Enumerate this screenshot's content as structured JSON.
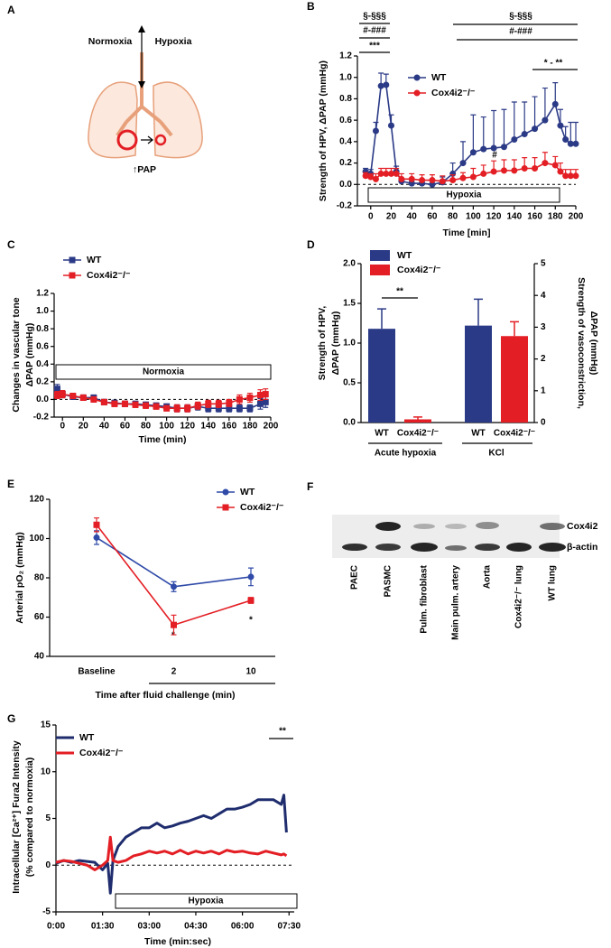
{
  "diagram": {
    "panel_label": "A",
    "labels": [
      "Normoxia",
      "Hypoxia",
      "↑PAP"
    ]
  },
  "blot": {
    "panel_label": "F",
    "lanes": [
      "PAEC",
      "PASMC",
      "Pulm. fibroblast",
      "Main pulm. artery",
      "Aorta",
      "Cox4i2⁻/⁻ lung",
      "WT lung"
    ],
    "rows": [
      "Cox4i2",
      "β-actin"
    ]
  },
  "chart_data": [
    {
      "type": "line",
      "panel_label": "B",
      "y_label": [
        "Strength of HPV, ΔPAP (mmHg)"
      ],
      "x_label": "Time [min]",
      "xlim": [
        -13,
        200
      ],
      "xticks": [
        0,
        20,
        40,
        60,
        80,
        100,
        120,
        140,
        160,
        180,
        200
      ],
      "ylim": [
        -0.2,
        1.2
      ],
      "yticks": [
        -0.2,
        {
          "value": 0,
          "label": "0.0"
        },
        0.2,
        0.4,
        0.6,
        0.8,
        {
          "value": 1,
          "label": "1.0"
        },
        1.2
      ],
      "zero_line": true,
      "error_style": "upper",
      "x": [
        -5,
        0,
        5,
        10,
        15,
        20,
        25,
        30,
        40,
        50,
        60,
        70,
        80,
        90,
        100,
        110,
        120,
        130,
        140,
        150,
        160,
        170,
        180,
        185,
        190,
        195,
        200
      ],
      "series": [
        {
          "name": "WT",
          "color": "#2b3a86",
          "marker": "circle",
          "values": [
            0.12,
            0.1,
            0.5,
            0.92,
            0.93,
            0.55,
            0.12,
            0.03,
            0.01,
            0.01,
            0.0,
            0.02,
            0.1,
            0.2,
            0.3,
            0.33,
            0.34,
            0.35,
            0.42,
            0.47,
            0.52,
            0.6,
            0.75,
            0.55,
            0.42,
            0.38,
            0.38
          ],
          "errors": [
            0.03,
            0.04,
            0.08,
            0.12,
            0.1,
            0.1,
            0.05,
            0.03,
            0.02,
            0.02,
            0.03,
            0.05,
            0.1,
            0.2,
            0.35,
            0.3,
            0.35,
            0.35,
            0.35,
            0.3,
            0.3,
            0.3,
            0.2,
            0.15,
            0.12,
            0.2,
            0.2
          ]
        },
        {
          "name": "Cox4i2⁻/⁻",
          "color": "#e31e24",
          "marker": "circle",
          "values": [
            0.08,
            0.07,
            0.05,
            0.1,
            0.1,
            0.1,
            0.1,
            0.05,
            0.05,
            0.04,
            0.04,
            0.03,
            0.04,
            0.06,
            0.07,
            0.1,
            0.12,
            0.13,
            0.13,
            0.15,
            0.15,
            0.2,
            0.18,
            0.12,
            0.08,
            0.08,
            0.08
          ],
          "errors": [
            0.03,
            0.03,
            0.05,
            0.05,
            0.05,
            0.05,
            0.05,
            0.05,
            0.05,
            0.05,
            0.05,
            0.05,
            0.05,
            0.05,
            0.08,
            0.08,
            0.1,
            0.1,
            0.1,
            0.1,
            0.1,
            0.1,
            0.08,
            0.08,
            0.06,
            0.06,
            0.06
          ]
        }
      ],
      "annotations": [
        "§-§§§",
        "#-###",
        "***",
        "§-§§§",
        "#-###",
        "* - **",
        "#",
        "Hypoxia"
      ]
    },
    {
      "type": "line",
      "panel_label": "C",
      "y_label": [
        "Changes in vascular tone",
        "ΔPAP (mmHg)"
      ],
      "x_label": "Time (min)",
      "xlim": [
        -8,
        200
      ],
      "xticks": [
        0,
        20,
        40,
        60,
        80,
        100,
        120,
        140,
        160,
        180,
        200
      ],
      "ylim": [
        -0.2,
        1.2
      ],
      "yticks": [
        -0.2,
        {
          "value": 0,
          "label": "0.0"
        },
        0.2,
        0.4,
        0.6,
        0.8,
        {
          "value": 1,
          "label": "1.0"
        },
        1.2
      ],
      "zero_line": true,
      "error_style": "both",
      "x": [
        -5,
        0,
        10,
        20,
        30,
        40,
        50,
        60,
        70,
        80,
        90,
        100,
        110,
        120,
        130,
        140,
        150,
        160,
        170,
        180,
        190,
        195
      ],
      "series": [
        {
          "name": "WT",
          "color": "#2b3a86",
          "marker": "square",
          "values": [
            0.12,
            0.06,
            0.03,
            0.02,
            0.02,
            -0.03,
            -0.04,
            -0.05,
            -0.05,
            -0.06,
            -0.07,
            -0.08,
            -0.1,
            -0.1,
            -0.08,
            -0.1,
            -0.1,
            -0.1,
            -0.1,
            -0.1,
            -0.05,
            -0.03
          ],
          "errors": [
            0.05,
            0.04,
            0.03,
            0.03,
            0.03,
            0.03,
            0.03,
            0.03,
            0.03,
            0.03,
            0.03,
            0.03,
            0.04,
            0.04,
            0.04,
            0.04,
            0.04,
            0.04,
            0.04,
            0.04,
            0.06,
            0.06
          ]
        },
        {
          "name": "Cox4i2⁻/⁻",
          "color": "#e31e24",
          "marker": "square",
          "values": [
            0.05,
            0.06,
            0.04,
            0.02,
            0.0,
            -0.03,
            -0.05,
            -0.05,
            -0.06,
            -0.07,
            -0.08,
            -0.1,
            -0.1,
            -0.1,
            -0.07,
            -0.05,
            -0.05,
            -0.04,
            0.0,
            0.02,
            0.05,
            0.06
          ],
          "errors": [
            0.04,
            0.04,
            0.03,
            0.03,
            0.03,
            0.03,
            0.03,
            0.03,
            0.03,
            0.03,
            0.03,
            0.03,
            0.04,
            0.04,
            0.04,
            0.04,
            0.04,
            0.04,
            0.05,
            0.05,
            0.06,
            0.06
          ]
        }
      ],
      "annotations": [
        "Normoxia"
      ]
    },
    {
      "type": "bar",
      "panel_label": "D",
      "y_label": [
        "Strength of HPV,",
        "ΔPAP (mmHg)"
      ],
      "y2_label": [
        "Strength of vasoconstriction,",
        "ΔPAP (mmHg)"
      ],
      "ylim": [
        0,
        2
      ],
      "yticks": [
        {
          "value": 0,
          "label": "0.0"
        },
        0.5,
        {
          "value": 1,
          "label": "1.0"
        },
        1.5,
        {
          "value": 2,
          "label": "2.0"
        }
      ],
      "y2lim": [
        0,
        5
      ],
      "y2ticks": [
        0,
        1,
        2,
        3,
        4,
        5
      ],
      "categories": [
        "WT",
        "Cox4i2⁻/⁻",
        "WT",
        "Cox4i2⁻/⁻"
      ],
      "values": [
        1.18,
        0.04,
        3.05,
        2.72
      ],
      "errors": [
        0.25,
        0.03,
        0.83,
        0.45
      ],
      "axes": [
        "y",
        "y",
        "y2",
        "y2"
      ],
      "colors": [
        "#2b3a86",
        "#e31e24",
        "#2b3a86",
        "#e31e24"
      ],
      "groups": [
        "Acute hypoxia",
        "KCl"
      ],
      "legend": [
        {
          "name": "WT",
          "color": "#2b3a86"
        },
        {
          "name": "Cox4i2⁻/⁻",
          "color": "#e31e24"
        }
      ],
      "annotations": [
        "**"
      ]
    },
    {
      "type": "line",
      "panel_label": "E",
      "y_label": [
        "Arterial pO₂ (mmHg)"
      ],
      "x_label": "Time after fluid challenge (min)",
      "ylim": [
        40,
        120
      ],
      "yticks": [
        40,
        60,
        80,
        100,
        120
      ],
      "categories": [
        "Baseline",
        "2",
        "10"
      ],
      "error_style": "both",
      "series": [
        {
          "name": "WT",
          "color": "#2f4aa8",
          "marker": "circle",
          "values": [
            100.5,
            75.5,
            80.5
          ],
          "errors": [
            3.5,
            2.5,
            4.5
          ]
        },
        {
          "name": "Cox4i2⁻/⁻",
          "color": "#e31e24",
          "marker": "square",
          "values": [
            107,
            56,
            68.5
          ],
          "errors": [
            3.5,
            5,
            1.5
          ]
        }
      ],
      "annotations": [
        "*",
        "*"
      ]
    },
    {
      "type": "line",
      "panel_label": "G",
      "y_label": [
        "Intracellular [Ca²⁺] Fura2 Intensity",
        "(% compared to normoxia)"
      ],
      "x_label": "Time (min:sec)",
      "xlim": [
        0,
        460
      ],
      "xticks": [
        {
          "value": 0,
          "label": "0:00"
        },
        {
          "value": 90,
          "label": "01:30"
        },
        {
          "value": 180,
          "label": "03:00"
        },
        {
          "value": 270,
          "label": "04:30"
        },
        {
          "value": 360,
          "label": "06:00"
        },
        {
          "value": 450,
          "label": "07:30"
        }
      ],
      "ylim": [
        -5,
        15
      ],
      "yticks": [
        -5,
        0,
        5,
        10,
        15
      ],
      "zero_line": true,
      "line_width": 3,
      "x": [
        0,
        15,
        30,
        45,
        60,
        75,
        90,
        100,
        105,
        110,
        120,
        135,
        150,
        165,
        180,
        195,
        210,
        225,
        240,
        255,
        270,
        285,
        300,
        315,
        330,
        345,
        360,
        375,
        390,
        405,
        420,
        435,
        440,
        445
      ],
      "series": [
        {
          "name": "WT",
          "color": "#1f2d6e",
          "values": [
            0.2,
            0.5,
            0.3,
            0.5,
            0.4,
            0.3,
            -0.5,
            0.2,
            -3,
            0.5,
            2,
            3,
            3.5,
            4,
            4,
            4.5,
            4,
            4.2,
            4.5,
            4.7,
            5,
            5.3,
            5,
            5.5,
            6,
            6,
            6.2,
            6.5,
            7,
            7,
            7,
            6.5,
            7.5,
            3.5
          ]
        },
        {
          "name": "Cox4i2⁻/⁻",
          "color": "#e31e24",
          "values": [
            0.3,
            0.5,
            0.4,
            0.2,
            0,
            -0.5,
            0,
            0.5,
            3,
            0.5,
            0.3,
            0.5,
            1,
            1.2,
            1.5,
            1.3,
            1.5,
            1.2,
            1.6,
            1.2,
            1.5,
            1.3,
            1.5,
            1.2,
            1.6,
            1.4,
            1.5,
            1.3,
            1.2,
            1.5,
            1.3,
            1.1,
            1.2,
            1.0
          ]
        }
      ],
      "annotations": [
        "**",
        "Hypoxia"
      ]
    }
  ]
}
